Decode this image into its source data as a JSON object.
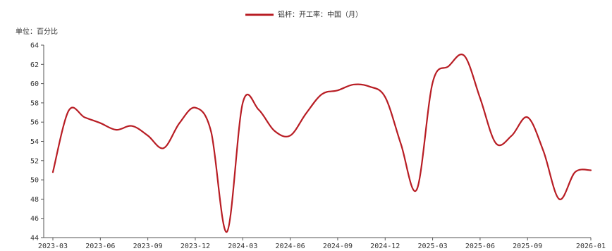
{
  "chart_data": {
    "type": "line",
    "unit_label": "单位：百分比",
    "legend": {
      "placement": "top-center",
      "entries": [
        "铝杆：开工率：中国（月）"
      ]
    },
    "grid": false,
    "ylim": [
      44,
      64
    ],
    "y_ticks": [
      44,
      46,
      48,
      50,
      52,
      54,
      56,
      58,
      60,
      62,
      64
    ],
    "x_ticks": [
      "2023-03",
      "2023-06",
      "2023-09",
      "2023-12",
      "2024-03",
      "2024-06",
      "2024-09",
      "2024-12",
      "2025-03",
      "2025-06",
      "2025-09",
      "2026-01"
    ],
    "color": "#B81D24",
    "series": [
      {
        "name": "铝杆：开工率：中国（月）",
        "points": [
          [
            "2023-03",
            50.8
          ],
          [
            "2023-04",
            57.2
          ],
          [
            "2023-05",
            56.5
          ],
          [
            "2023-06",
            55.9
          ],
          [
            "2023-07",
            55.2
          ],
          [
            "2023-08",
            55.6
          ],
          [
            "2023-09",
            54.6
          ],
          [
            "2023-10",
            53.3
          ],
          [
            "2023-11",
            55.9
          ],
          [
            "2023-12",
            57.5
          ],
          [
            "2024-01",
            55.0
          ],
          [
            "2024-02",
            44.6
          ],
          [
            "2024-03",
            58.0
          ],
          [
            "2024-04",
            57.3
          ],
          [
            "2024-05",
            55.1
          ],
          [
            "2024-06",
            54.6
          ],
          [
            "2024-07",
            56.9
          ],
          [
            "2024-08",
            58.9
          ],
          [
            "2024-09",
            59.3
          ],
          [
            "2024-10",
            59.9
          ],
          [
            "2024-11",
            59.7
          ],
          [
            "2024-12",
            58.6
          ],
          [
            "2025-01",
            53.7
          ],
          [
            "2025-02",
            49.0
          ],
          [
            "2025-03",
            60.1
          ],
          [
            "2025-04",
            61.8
          ],
          [
            "2025-05",
            62.9
          ],
          [
            "2025-06",
            58.5
          ],
          [
            "2025-07",
            53.8
          ],
          [
            "2025-08",
            54.6
          ],
          [
            "2025-09",
            56.5
          ],
          [
            "2025-10",
            53.0
          ],
          [
            "2025-11",
            48.0
          ],
          [
            "2025-12",
            50.8
          ],
          [
            "2026-01",
            51.0
          ]
        ]
      }
    ]
  }
}
